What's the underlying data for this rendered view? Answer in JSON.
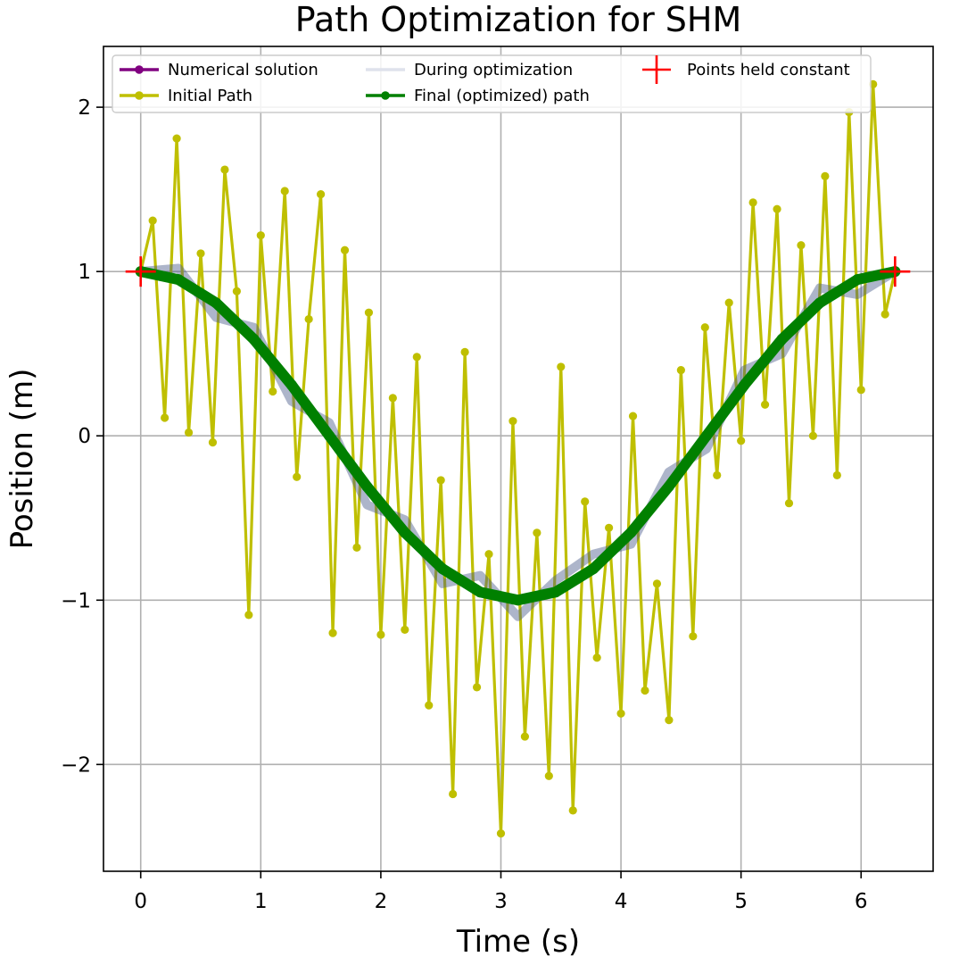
{
  "chart_data": {
    "type": "line",
    "title": "Path Optimization for SHM",
    "xlabel": "Time (s)",
    "ylabel": "Position (m)",
    "xlim": [
      -0.31,
      6.6
    ],
    "ylim": [
      -2.65,
      2.37
    ],
    "xticks": [
      0,
      1,
      2,
      3,
      4,
      5,
      6
    ],
    "yticks": [
      -2,
      -1,
      0,
      1,
      2
    ],
    "xtick_labels": [
      "0",
      "1",
      "2",
      "3",
      "4",
      "5",
      "6"
    ],
    "ytick_labels": [
      "−2",
      "−1",
      "0",
      "1",
      "2"
    ],
    "grid": true,
    "legend_position": "top",
    "colors": {
      "numerical": "#800080",
      "initial": "#bfbf00",
      "during": "#4a5a8a",
      "final": "#008000",
      "held": "#ff0000"
    },
    "series": [
      {
        "name": "Numerical solution",
        "role": "numerical",
        "x": [
          0.0,
          0.314,
          0.628,
          0.942,
          1.257,
          1.571,
          1.885,
          2.199,
          2.513,
          2.827,
          3.142,
          3.456,
          3.77,
          4.084,
          4.398,
          4.712,
          5.027,
          5.341,
          5.655,
          5.969,
          6.283
        ],
        "y": [
          1.0,
          0.951,
          0.809,
          0.588,
          0.309,
          0.0,
          -0.309,
          -0.588,
          -0.809,
          -0.951,
          -1.0,
          -0.951,
          -0.809,
          -0.588,
          -0.309,
          0.0,
          0.309,
          0.588,
          0.809,
          0.951,
          1.0
        ]
      },
      {
        "name": "Initial Path",
        "role": "initial",
        "x": [
          0.0,
          0.1,
          0.2,
          0.3,
          0.4,
          0.5,
          0.6,
          0.7,
          0.8,
          0.9,
          1.0,
          1.1,
          1.2,
          1.3,
          1.4,
          1.5,
          1.6,
          1.7,
          1.8,
          1.9,
          2.0,
          2.1,
          2.2,
          2.3,
          2.4,
          2.5,
          2.6,
          2.7,
          2.8,
          2.9,
          3.0,
          3.1,
          3.2,
          3.3,
          3.4,
          3.5,
          3.6,
          3.7,
          3.8,
          3.9,
          4.0,
          4.1,
          4.2,
          4.3,
          4.4,
          4.5,
          4.6,
          4.7,
          4.8,
          4.9,
          5.0,
          5.1,
          5.2,
          5.3,
          5.4,
          5.5,
          5.6,
          5.7,
          5.8,
          5.9,
          6.0,
          6.1,
          6.2,
          6.283
        ],
        "y": [
          1.0,
          1.31,
          0.11,
          1.81,
          0.02,
          1.11,
          -0.04,
          1.62,
          0.88,
          -1.09,
          1.22,
          0.27,
          1.49,
          -0.25,
          0.71,
          1.47,
          -1.2,
          1.13,
          -0.68,
          0.75,
          -1.21,
          0.23,
          -1.18,
          0.48,
          -1.64,
          -0.27,
          -2.18,
          0.51,
          -1.53,
          -0.72,
          -2.42,
          0.09,
          -1.83,
          -0.59,
          -2.07,
          0.42,
          -2.28,
          -0.4,
          -1.35,
          -0.56,
          -1.69,
          0.12,
          -1.55,
          -0.9,
          -1.73,
          0.4,
          -1.22,
          0.66,
          -0.24,
          0.81,
          -0.03,
          1.42,
          0.19,
          1.38,
          -0.41,
          1.16,
          0.0,
          1.58,
          -0.24,
          1.97,
          0.28,
          2.14,
          0.74,
          1.0
        ]
      },
      {
        "name": "During optimization",
        "role": "during",
        "x": [
          0.0,
          0.314,
          0.628,
          0.942,
          1.257,
          1.571,
          1.885,
          2.199,
          2.513,
          2.827,
          3.142,
          3.456,
          3.77,
          4.084,
          4.398,
          4.712,
          5.027,
          5.341,
          5.655,
          5.969,
          6.283
        ],
        "y": [
          1.0,
          1.02,
          0.72,
          0.66,
          0.21,
          0.08,
          -0.42,
          -0.51,
          -0.9,
          -0.85,
          -1.1,
          -0.88,
          -0.72,
          -0.66,
          -0.22,
          -0.08,
          0.4,
          0.5,
          0.9,
          0.86,
          1.0
        ]
      },
      {
        "name": "Final (optimized) path",
        "role": "final",
        "x": [
          0.0,
          0.314,
          0.628,
          0.942,
          1.257,
          1.571,
          1.885,
          2.199,
          2.513,
          2.827,
          3.142,
          3.456,
          3.77,
          4.084,
          4.398,
          4.712,
          5.027,
          5.341,
          5.655,
          5.969,
          6.283
        ],
        "y": [
          1.0,
          0.951,
          0.809,
          0.588,
          0.309,
          0.0,
          -0.309,
          -0.588,
          -0.809,
          -0.951,
          -1.0,
          -0.951,
          -0.809,
          -0.588,
          -0.309,
          0.0,
          0.309,
          0.588,
          0.809,
          0.951,
          1.0
        ]
      },
      {
        "name": "Points held constant",
        "role": "held",
        "x": [
          0.0,
          6.283
        ],
        "y": [
          1.0,
          1.0
        ]
      }
    ]
  }
}
